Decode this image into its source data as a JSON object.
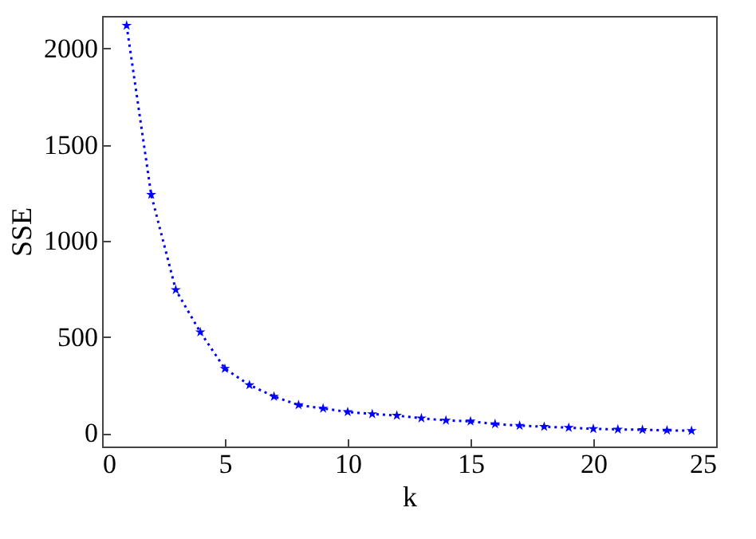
{
  "chart_data": {
    "type": "line",
    "xlabel": "k",
    "ylabel": "SSE",
    "x": [
      1,
      2,
      3,
      4,
      5,
      6,
      7,
      8,
      9,
      10,
      11,
      12,
      13,
      14,
      15,
      16,
      17,
      18,
      19,
      20,
      21,
      22,
      23,
      24
    ],
    "series": [
      {
        "color": "#0000ff",
        "values": [
          2120,
          1240,
          745,
          525,
          335,
          250,
          190,
          146,
          128,
          110,
          99,
          91,
          77,
          66,
          61,
          47,
          39,
          33,
          28,
          22,
          19,
          17,
          14,
          12
        ]
      }
    ],
    "xlim": [
      0,
      25
    ],
    "xticks": [
      0,
      5,
      10,
      15,
      20,
      25
    ],
    "ylim": [
      -70,
      2170
    ],
    "yticks": [
      0,
      500,
      1000,
      1500,
      2000
    ],
    "grid": false,
    "legend": false,
    "marker": "star",
    "line_style": "dotted"
  }
}
